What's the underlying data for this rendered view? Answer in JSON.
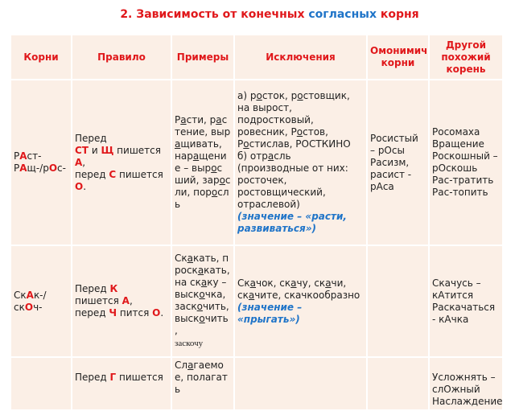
{
  "title": {
    "part1": "2. Зависимость от конечных ",
    "part2": "согласных",
    "part3": " корня"
  },
  "colors": {
    "accent_red": "#e0181b",
    "accent_blue": "#1f74c8",
    "cell_bg": "#fbefe6"
  },
  "headers": [
    "Корни",
    "Правило",
    "Примеры",
    "Исключения",
    "Омонимичные корни",
    "Другой похожий корень"
  ],
  "rows": [
    {
      "cells": [
        [
          [
            "",
            "Р"
          ],
          [
            "r",
            "А"
          ],
          [
            "",
            "ст-"
          ],
          [
            "br",
            ""
          ],
          [
            "",
            "Р"
          ],
          [
            "r",
            "А"
          ],
          [
            "",
            "щ-/р"
          ],
          [
            "r",
            "О"
          ],
          [
            "",
            "с-"
          ]
        ],
        [
          [
            "",
            "Перед"
          ],
          [
            "br",
            ""
          ],
          [
            "r",
            "СТ"
          ],
          [
            "",
            " и "
          ],
          [
            "r",
            "Щ"
          ],
          [
            "",
            " пишется"
          ],
          [
            "br",
            ""
          ],
          [
            "r",
            "А"
          ],
          [
            "",
            ","
          ],
          [
            "br",
            ""
          ],
          [
            "",
            "перед "
          ],
          [
            "r",
            "С"
          ],
          [
            "",
            " пишется"
          ],
          [
            "br",
            ""
          ],
          [
            "r",
            " О"
          ],
          [
            "",
            "."
          ]
        ],
        [
          [
            "",
            "Р"
          ],
          [
            "u",
            "а"
          ],
          [
            "",
            "сти, р"
          ],
          [
            "u",
            "а"
          ],
          [
            "",
            "стение, выр"
          ],
          [
            "u",
            "а"
          ],
          [
            "",
            "щивать, нар"
          ],
          [
            "u",
            "а"
          ],
          [
            "",
            "щение – выр"
          ],
          [
            "u",
            "о"
          ],
          [
            "",
            "сший, зар"
          ],
          [
            "u",
            "о"
          ],
          [
            "",
            "сли, пор"
          ],
          [
            "u",
            "о"
          ],
          [
            "",
            "сль"
          ]
        ],
        [
          [
            "",
            "а)  р"
          ],
          [
            "u",
            "о"
          ],
          [
            "",
            "сток, р"
          ],
          [
            "u",
            "о"
          ],
          [
            "",
            "стовщик, на вырост, подростковый, ровесник, Р"
          ],
          [
            "u",
            "о"
          ],
          [
            "",
            "стов, Р"
          ],
          [
            "u",
            "о"
          ],
          [
            "",
            "стислав, РОСТКИНО"
          ],
          [
            "br",
            ""
          ],
          [
            "",
            "б) отр"
          ],
          [
            "u",
            "а"
          ],
          [
            "",
            "сль"
          ],
          [
            "br",
            ""
          ],
          [
            "",
            "(производные от них: росточек, ростовщический, отраслевой)"
          ],
          [
            "br",
            ""
          ],
          [
            "b",
            "(значение – «расти, развиваться»)"
          ]
        ],
        [
          [
            "",
            "Росистый – рОсы"
          ],
          [
            "br",
            ""
          ],
          [
            "",
            "Расизм, расист - рАса"
          ]
        ],
        [
          [
            "",
            "Росомаха"
          ],
          [
            "br",
            ""
          ],
          [
            "",
            "Вращение"
          ],
          [
            "br",
            ""
          ],
          [
            "",
            "Роскошный – рОскошь"
          ],
          [
            "br",
            ""
          ],
          [
            "",
            "Рас-тратить"
          ],
          [
            "br",
            ""
          ],
          [
            "",
            "Рас-топить"
          ]
        ]
      ]
    },
    {
      "cells": [
        [
          [
            "",
            "Ск"
          ],
          [
            "r",
            "А"
          ],
          [
            "",
            "к-/ск"
          ],
          [
            "r",
            "О"
          ],
          [
            "",
            "ч-"
          ]
        ],
        [
          [
            "",
            "Перед "
          ],
          [
            "r",
            "К"
          ],
          [
            "br",
            ""
          ],
          [
            "",
            "пишется "
          ],
          [
            "r",
            "А"
          ],
          [
            "",
            ","
          ],
          [
            "br",
            ""
          ],
          [
            "",
            "перед "
          ],
          [
            "r",
            "Ч"
          ],
          [
            "",
            " пится "
          ],
          [
            "r",
            "О"
          ],
          [
            "",
            "."
          ]
        ],
        [
          [
            "",
            "Ск"
          ],
          [
            "u",
            "а"
          ],
          [
            "",
            "кать, проск"
          ],
          [
            "u",
            "а"
          ],
          [
            "",
            "кать, на ск"
          ],
          [
            "u",
            "а"
          ],
          [
            "",
            "ку – выск"
          ],
          [
            "u",
            "о"
          ],
          [
            "",
            "чка, заск"
          ],
          [
            "u",
            "о"
          ],
          [
            "",
            "чить, выск"
          ],
          [
            "u",
            "о"
          ],
          [
            "",
            "чить"
          ],
          [
            "br",
            ""
          ],
          [
            "",
            ","
          ],
          [
            "br",
            ""
          ],
          [
            "serif",
            "заскочу"
          ]
        ],
        [
          [
            "",
            "Ск"
          ],
          [
            "u",
            "а"
          ],
          [
            "",
            "чок, ск"
          ],
          [
            "u",
            "а"
          ],
          [
            "",
            "чу, ск"
          ],
          [
            "u",
            "а"
          ],
          [
            "",
            "чи, ск"
          ],
          [
            "u",
            "а"
          ],
          [
            "",
            "чите, скачкообразно"
          ],
          [
            "br",
            ""
          ],
          [
            "b",
            "(значение – «прыгать»)"
          ]
        ],
        [],
        [
          [
            "",
            "Скачусь – кАтится"
          ],
          [
            "br",
            ""
          ],
          [
            "",
            "Раскачаться - кАчка"
          ]
        ]
      ]
    },
    {
      "cells": [
        [],
        [
          [
            "br",
            ""
          ],
          [
            "",
            "Перед "
          ],
          [
            "r",
            "Г"
          ],
          [
            "",
            " пишется"
          ]
        ],
        [
          [
            "",
            "Сл"
          ],
          [
            "u",
            "а"
          ],
          [
            "",
            "гаемое, полагать"
          ]
        ],
        [],
        [],
        [
          [
            "br",
            ""
          ],
          [
            "",
            "Усложнять – слОжный"
          ],
          [
            "br",
            ""
          ],
          [
            "",
            "Наслаждение"
          ]
        ]
      ]
    }
  ]
}
